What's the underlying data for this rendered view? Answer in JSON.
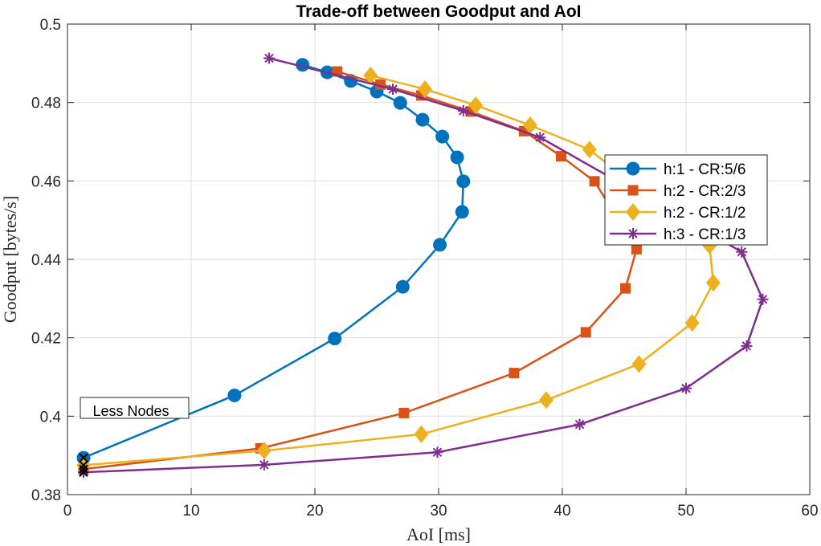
{
  "chart_data": {
    "type": "line",
    "title": "Trade-off between Goodput and AoI",
    "xlabel": "AoI [ms]",
    "ylabel": "Goodput [bytes/s]",
    "xlim": [
      0,
      60
    ],
    "ylim": [
      0.38,
      0.5
    ],
    "xticks": [
      0,
      10,
      20,
      30,
      40,
      50,
      60
    ],
    "yticks": [
      0.38,
      0.4,
      0.42,
      0.44,
      0.46,
      0.48,
      0.5
    ],
    "xtick_labels": [
      "0",
      "10",
      "20",
      "30",
      "40",
      "50",
      "60"
    ],
    "ytick_labels": [
      "0.38",
      "0.4",
      "0.42",
      "0.44",
      "0.46",
      "0.48",
      "0.5"
    ],
    "grid": true,
    "legend_position": "upper-right",
    "annotation": "Less Nodes",
    "series": [
      {
        "name": "h:1 - CR:5/6",
        "color": "#0072BD",
        "marker": "circle",
        "points": [
          [
            1.3,
            0.3894
          ],
          [
            13.5,
            0.4053
          ],
          [
            21.6,
            0.4198
          ],
          [
            27.1,
            0.433
          ],
          [
            30.1,
            0.4437
          ],
          [
            31.9,
            0.4521
          ],
          [
            32.0,
            0.4599
          ],
          [
            31.5,
            0.466
          ],
          [
            30.3,
            0.4713
          ],
          [
            28.7,
            0.4756
          ],
          [
            26.9,
            0.4799
          ],
          [
            25.0,
            0.4828
          ],
          [
            22.9,
            0.4855
          ],
          [
            21.0,
            0.4877
          ],
          [
            19.0,
            0.4896
          ]
        ]
      },
      {
        "name": "h:2 - CR:2/3",
        "color": "#D95319",
        "marker": "square",
        "points": [
          [
            1.3,
            0.3865
          ],
          [
            15.6,
            0.3918
          ],
          [
            27.2,
            0.4008
          ],
          [
            36.1,
            0.411
          ],
          [
            41.9,
            0.4214
          ],
          [
            45.1,
            0.4326
          ],
          [
            46.0,
            0.4426
          ],
          [
            42.6,
            0.4599
          ],
          [
            39.9,
            0.4663
          ],
          [
            36.9,
            0.4727
          ],
          [
            32.6,
            0.4777
          ],
          [
            28.6,
            0.4818
          ],
          [
            25.3,
            0.4846
          ],
          [
            21.8,
            0.4879
          ]
        ]
      },
      {
        "name": "h:2 - CR:1/2",
        "color": "#EDB120",
        "marker": "diamond",
        "points": [
          [
            1.3,
            0.3875
          ],
          [
            15.9,
            0.3912
          ],
          [
            28.6,
            0.3954
          ],
          [
            38.7,
            0.4041
          ],
          [
            46.2,
            0.4133
          ],
          [
            50.5,
            0.4238
          ],
          [
            52.2,
            0.434
          ],
          [
            51.9,
            0.4435
          ],
          [
            42.2,
            0.468
          ],
          [
            37.4,
            0.4742
          ],
          [
            33.0,
            0.4793
          ],
          [
            28.9,
            0.4834
          ],
          [
            24.5,
            0.4869
          ]
        ]
      },
      {
        "name": "h:3 - CR:1/3",
        "color": "#7E2F8E",
        "marker": "asterisk",
        "points": [
          [
            1.3,
            0.3857
          ],
          [
            15.9,
            0.3876
          ],
          [
            29.9,
            0.3908
          ],
          [
            41.4,
            0.3979
          ],
          [
            50.0,
            0.4071
          ],
          [
            54.9,
            0.4179
          ],
          [
            56.2,
            0.4298
          ],
          [
            54.5,
            0.4419
          ],
          [
            38.2,
            0.4711
          ],
          [
            32.0,
            0.4779
          ],
          [
            26.3,
            0.4834
          ],
          [
            16.3,
            0.4913
          ]
        ]
      }
    ]
  }
}
